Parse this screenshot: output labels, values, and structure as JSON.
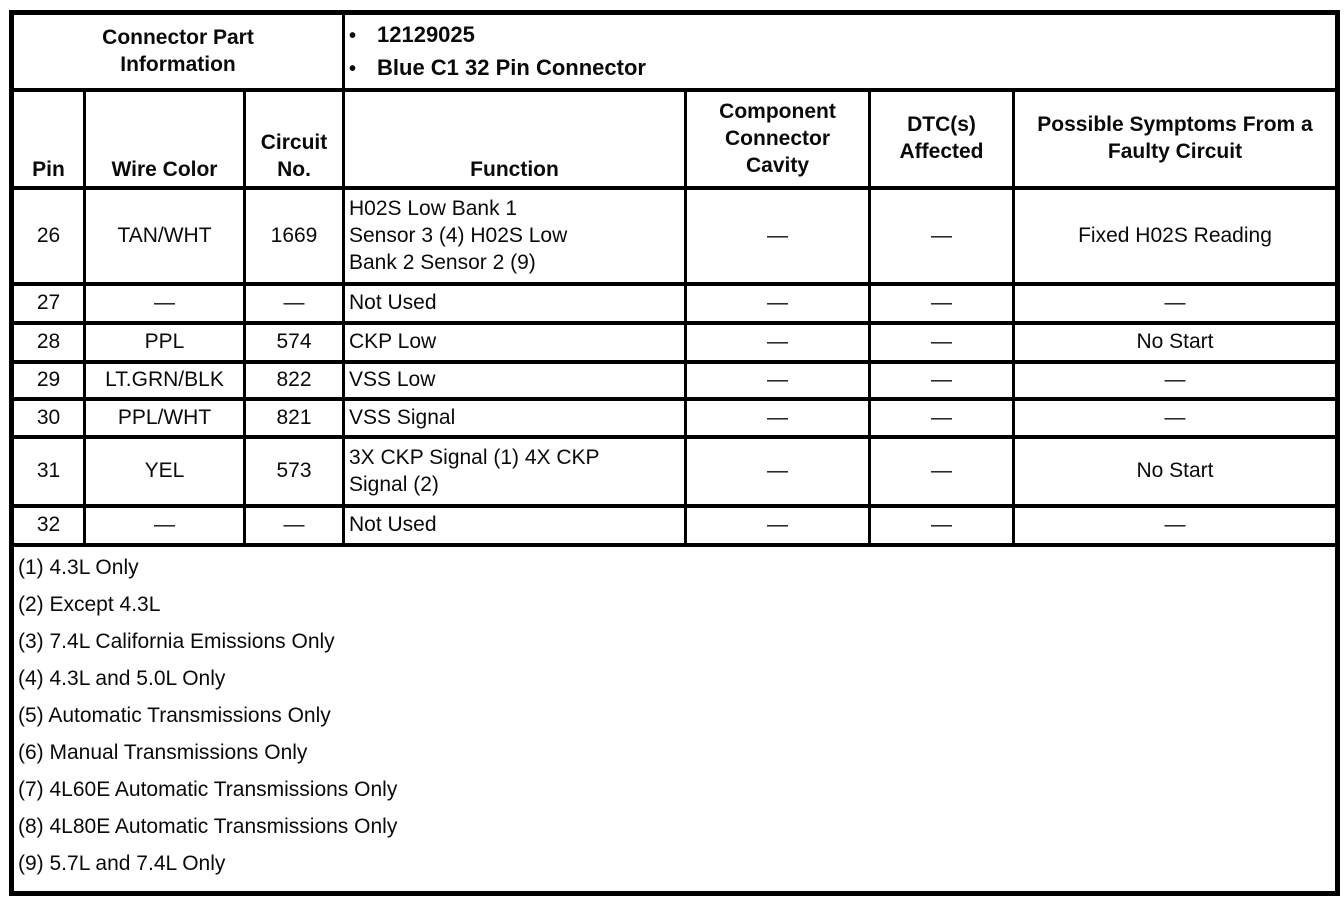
{
  "connector_info": {
    "title": "Connector Part\nInformation",
    "bullet_char": "•",
    "bullets": [
      "12129025",
      "Blue C1 32 Pin Connector"
    ]
  },
  "table": {
    "headers": [
      "Pin",
      "Wire Color",
      "Circuit No.",
      "Function",
      "Component Connector Cavity",
      "DTC(s) Affected",
      "Possible Symptoms From a Faulty Circuit"
    ],
    "rows": [
      {
        "pin": "26",
        "wire_color": "TAN/WHT",
        "circuit_no": "1669",
        "function": "H02S Low Bank 1\nSensor 3 (4) H02S Low\nBank 2 Sensor 2 (9)",
        "cavity": "—",
        "dtc": "—",
        "symptoms": "Fixed H02S Reading"
      },
      {
        "pin": "27",
        "wire_color": "—",
        "circuit_no": "—",
        "function": "Not Used",
        "cavity": "—",
        "dtc": "—",
        "symptoms": "—"
      },
      {
        "pin": "28",
        "wire_color": "PPL",
        "circuit_no": "574",
        "function": "CKP Low",
        "cavity": "—",
        "dtc": "—",
        "symptoms": "No Start"
      },
      {
        "pin": "29",
        "wire_color": "LT.GRN/BLK",
        "circuit_no": "822",
        "function": "VSS Low",
        "cavity": "—",
        "dtc": "—",
        "symptoms": "—"
      },
      {
        "pin": "30",
        "wire_color": "PPL/WHT",
        "circuit_no": "821",
        "function": "VSS Signal",
        "cavity": "—",
        "dtc": "—",
        "symptoms": "—"
      },
      {
        "pin": "31",
        "wire_color": "YEL",
        "circuit_no": "573",
        "function": "3X CKP Signal (1) 4X CKP\nSignal (2)",
        "cavity": "—",
        "dtc": "—",
        "symptoms": "No Start"
      },
      {
        "pin": "32",
        "wire_color": "—",
        "circuit_no": "—",
        "function": "Not Used",
        "cavity": "—",
        "dtc": "—",
        "symptoms": "—"
      }
    ]
  },
  "notes": [
    "(1) 4.3L Only",
    "(2) Except 4.3L",
    "(3) 7.4L California Emissions Only",
    "(4) 4.3L and 5.0L Only",
    "(5) Automatic Transmissions Only",
    "(6) Manual Transmissions Only",
    "(7) 4L60E Automatic Transmissions Only",
    "(8) 4L80E Automatic Transmissions Only",
    "(9) 5.7L and 7.4L Only"
  ]
}
